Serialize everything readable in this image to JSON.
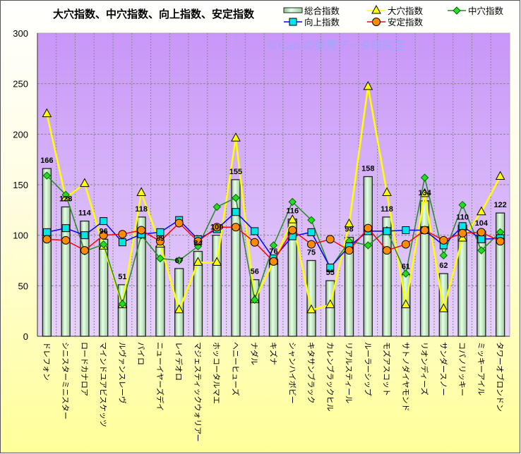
{
  "chart_data": {
    "type": "bar+line",
    "title": "大穴指数、中穴指数、向上指数、安定指数",
    "watermark": "©Caniの競馬データ研究室",
    "ylim": [
      0,
      300
    ],
    "yticks": [
      0,
      50,
      100,
      150,
      200,
      250,
      300
    ],
    "grid": true,
    "legend_position": "top-right",
    "categories": [
      "ドレフォン",
      "シニスターミニスター",
      "ロードカナロア",
      "マインドユアビスケッツ",
      "ルヴァンスレーヴ",
      "パイロ",
      "ニューイヤーズデイ",
      "レイデオロ",
      "マジェスティックウォリアー",
      "ホッコータルマエ",
      "ヘニーヒューズ",
      "ナダル",
      "キズナ",
      "シャンハイボビー",
      "キタサンブラック",
      "カレンブラックヒル",
      "リアルスティール",
      "ルーラーシップ",
      "モズアスコット",
      "サトノダイヤモンド",
      "リオンディーズ",
      "サンダースノー",
      "コパノリッキー",
      "ミッキーアイル",
      "タワーオブロンドン"
    ],
    "series": [
      {
        "name": "総合指数",
        "kind": "bar",
        "color": "#c8f0c8",
        "values": [
          166,
          128,
          114,
          96,
          51,
          118,
          89,
          67,
          84,
          100,
          155,
          56,
          76,
          116,
          75,
          55,
          98,
          158,
          118,
          61,
          134,
          62,
          110,
          104,
          122
        ]
      },
      {
        "name": "大穴指数",
        "kind": "line",
        "marker": "triangle",
        "color": "#ffff00",
        "values": [
          220,
          137,
          151,
          89,
          31,
          142,
          91,
          26,
          73,
          73,
          196,
          36,
          74,
          115,
          26,
          31,
          111,
          247,
          142,
          31,
          141,
          27,
          97,
          123,
          158
        ]
      },
      {
        "name": "中穴指数",
        "kind": "line",
        "marker": "diamond",
        "color": "#228b22",
        "marker_color": "#22dd22",
        "values": [
          159,
          140,
          84,
          91,
          32,
          100,
          77,
          75,
          89,
          128,
          137,
          36,
          90,
          133,
          115,
          67,
          94,
          90,
          105,
          62,
          157,
          80,
          130,
          85,
          103
        ]
      },
      {
        "name": "向上指数",
        "kind": "line",
        "marker": "square",
        "color": "#0000ff",
        "marker_color": "#00e5e5",
        "values": [
          103,
          107,
          100,
          114,
          93,
          101,
          103,
          115,
          96,
          106,
          123,
          104,
          77,
          99,
          103,
          68,
          89,
          104,
          104,
          105,
          105,
          90,
          109,
          96,
          97
        ]
      },
      {
        "name": "安定指数",
        "kind": "line",
        "marker": "circle",
        "color": "#ff0000",
        "marker_color": "#ff8c00",
        "values": [
          96,
          95,
          85,
          100,
          101,
          105,
          94,
          112,
          94,
          108,
          108,
          93,
          74,
          105,
          91,
          96,
          85,
          107,
          85,
          91,
          105,
          95,
          102,
          103,
          94
        ]
      }
    ]
  }
}
